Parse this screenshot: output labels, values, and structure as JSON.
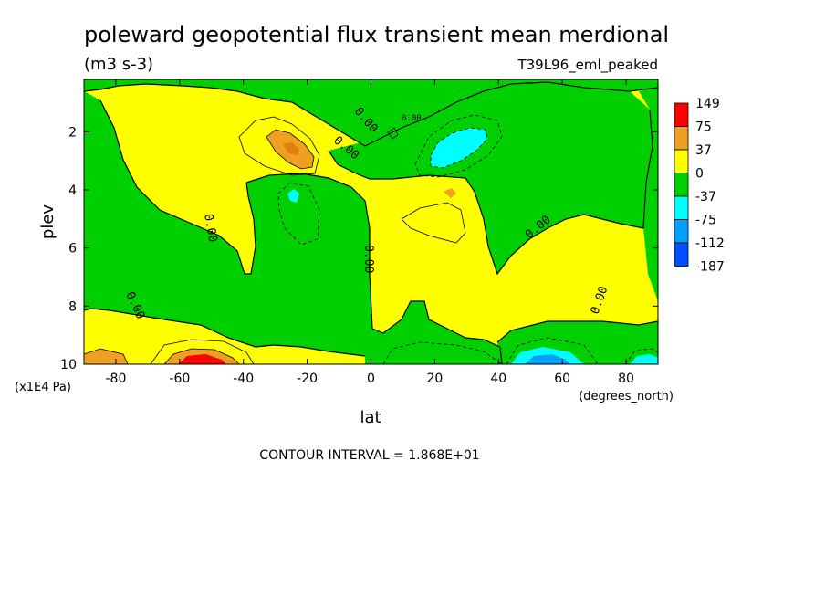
{
  "chart_data": {
    "type": "heatmap",
    "title": "poleward geopotential flux transient mean merdional",
    "units": "(m3 s-3)",
    "experiment": "T39L96_eml_peaked",
    "xlabel": "lat",
    "xunits": "(degrees_north)",
    "ylabel": "plev",
    "yunits": "(x1E4 Pa)",
    "footer": "CONTOUR INTERVAL = 1.868E+01",
    "xlim": [
      -90,
      90
    ],
    "ylim": [
      0.2,
      10
    ],
    "y_inverted": true,
    "x_ticks": [
      -80,
      -60,
      -40,
      -20,
      0,
      20,
      40,
      60,
      80
    ],
    "x_tick_labels": [
      "-80",
      "-60",
      "-40",
      "-20",
      "0",
      "20",
      "40",
      "60",
      "80"
    ],
    "y_ticks": [
      2,
      4,
      6,
      8,
      10
    ],
    "y_tick_labels": [
      "2",
      "4",
      "6",
      "8",
      "10"
    ],
    "contour_labels": [
      "0.00",
      "0.00",
      "0.00",
      "0.00",
      "0.00",
      "0.00",
      "0.00",
      "0.00"
    ],
    "colorbar": {
      "labels": [
        "149",
        "75",
        "37",
        "0",
        "-37",
        "-75",
        "-112",
        "-187"
      ],
      "colors": [
        "#ff0000",
        "#f0a020",
        "#ffff00",
        "#00d000",
        "#00ffff",
        "#00a0ff",
        "#0050ff"
      ]
    },
    "colors": {
      "positive_low": "#ffff00",
      "negative_low": "#00d000",
      "positive_mid": "#f0a020",
      "positive_high": "#ff0000",
      "negative_mid": "#00ffff",
      "negative_high": "#00a0ff"
    },
    "fields": {
      "negative_regions": [
        {
          "label": "upper green band",
          "lat": [
            -90,
            90
          ],
          "plev": [
            0.3,
            1.0
          ],
          "level": "-37"
        },
        {
          "label": "northern midlatitude jet",
          "lat": [
            18,
            40
          ],
          "plev": [
            1.5,
            3.2
          ],
          "level": "-75"
        },
        {
          "label": "southern subtropics",
          "lat": [
            -35,
            -10
          ],
          "plev": [
            3.2,
            7.3
          ],
          "level": "-37"
        },
        {
          "label": "northern extratropics column",
          "lat": [
            40,
            90
          ],
          "plev": [
            2.5,
            8.5
          ],
          "level": "-37"
        },
        {
          "label": "equatorial lower",
          "lat": [
            10,
            40
          ],
          "plev": [
            8.5,
            10
          ],
          "level": "-37"
        },
        {
          "label": "northern surface",
          "lat": [
            45,
            60
          ],
          "plev": [
            9.5,
            10
          ],
          "level": "-112"
        }
      ],
      "positive_regions": [
        {
          "label": "southern upper maximum",
          "lat": [
            -30,
            -18
          ],
          "plev": [
            1.8,
            3.2
          ],
          "level": "75"
        },
        {
          "label": "southern surface maximum",
          "lat": [
            -62,
            -48
          ],
          "plev": [
            9.5,
            10
          ],
          "level": "149"
        },
        {
          "label": "deep tropical column",
          "lat": [
            -5,
            40
          ],
          "plev": [
            3.0,
            8.5
          ],
          "level": "37"
        },
        {
          "label": "southern polar",
          "lat": [
            -80,
            -65
          ],
          "plev": [
            1.0,
            4.0
          ],
          "level": "37"
        }
      ]
    }
  }
}
